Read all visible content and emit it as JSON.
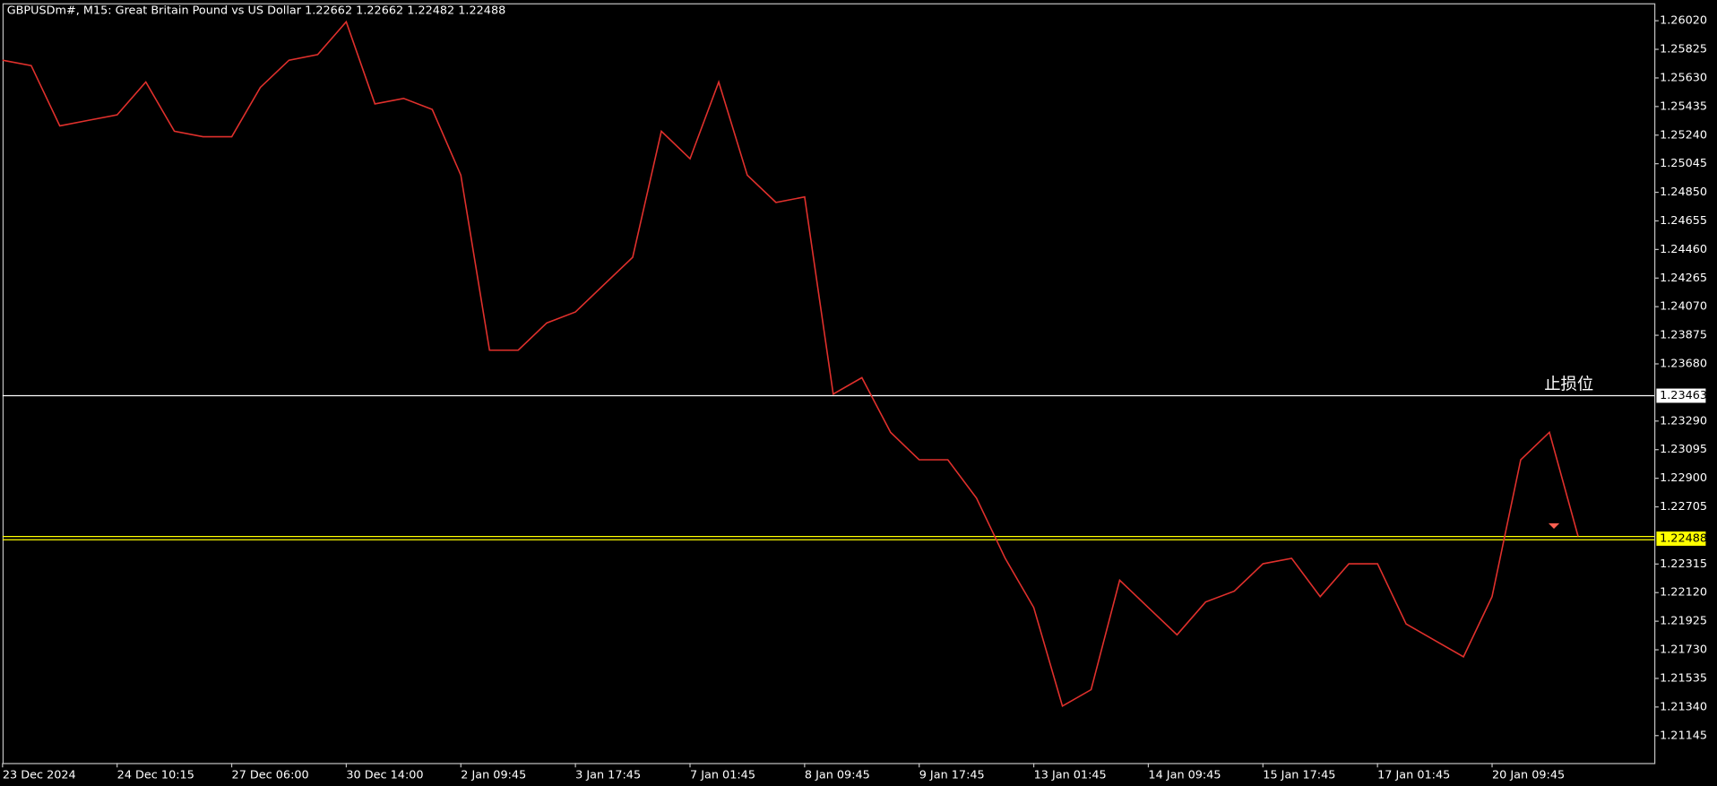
{
  "chart_data": {
    "type": "line",
    "title": "GBPUSDm#, M15:  Great Britain Pound vs US Dollar  1.22662 1.22662 1.22482 1.22488",
    "annotation": "止损位",
    "categories": [
      "23 Dec 2024",
      null,
      null,
      null,
      "24 Dec 10:15",
      null,
      null,
      null,
      "27 Dec 06:00",
      null,
      null,
      null,
      "30 Dec 14:00",
      null,
      null,
      null,
      "2 Jan 09:45",
      null,
      null,
      null,
      "3 Jan 17:45",
      null,
      null,
      null,
      "7 Jan 01:45",
      null,
      null,
      null,
      "8 Jan 09:45",
      null,
      null,
      null,
      "9 Jan 17:45",
      null,
      null,
      null,
      "13 Jan 01:45",
      null,
      null,
      null,
      "14 Jan 09:45",
      null,
      null,
      null,
      "15 Jan 17:45",
      null,
      null,
      null,
      "17 Jan 01:45",
      null,
      null,
      null,
      "20 Jan 09:45",
      null,
      null,
      null
    ],
    "series": [
      {
        "name": "GBPUSDm#",
        "color": "#e0302c",
        "values": [
          1.25751,
          1.25714,
          1.25303,
          1.25341,
          1.25378,
          1.25602,
          1.25266,
          1.25229,
          1.25229,
          1.25565,
          1.25751,
          1.25789,
          1.26013,
          1.25453,
          1.2549,
          1.25415,
          1.24967,
          1.23773,
          1.23773,
          1.23959,
          1.24034,
          1.24221,
          1.24407,
          1.25266,
          1.25079,
          1.25602,
          1.24967,
          1.24781,
          1.24818,
          1.23474,
          1.23586,
          1.23213,
          1.23026,
          1.23026,
          1.22765,
          1.22354,
          1.22018,
          1.21346,
          1.21458,
          1.22205,
          1.22018,
          1.21832,
          1.22056,
          1.2213,
          1.22317,
          1.22354,
          1.22093,
          1.22317,
          1.22317,
          1.21906,
          1.21794,
          1.21682,
          1.22093,
          1.23026,
          1.23213,
          1.22504
        ]
      }
    ],
    "hlines": [
      {
        "value": 1.23463,
        "color": "#ffffff"
      },
      {
        "value": 1.22488,
        "color": "#ffff00"
      }
    ],
    "ylim": [
      1.20958,
      1.26139
    ],
    "yticks": [
      {
        "value": 1.2602,
        "label": "1.26020"
      },
      {
        "value": 1.25825,
        "label": "1.25825"
      },
      {
        "value": 1.2563,
        "label": "1.25630"
      },
      {
        "value": 1.25435,
        "label": "1.25435"
      },
      {
        "value": 1.2524,
        "label": "1.25240"
      },
      {
        "value": 1.25045,
        "label": "1.25045"
      },
      {
        "value": 1.2485,
        "label": "1.24850"
      },
      {
        "value": 1.24655,
        "label": "1.24655"
      },
      {
        "value": 1.2446,
        "label": "1.24460"
      },
      {
        "value": 1.24265,
        "label": "1.24265"
      },
      {
        "value": 1.2407,
        "label": "1.24070"
      },
      {
        "value": 1.23875,
        "label": "1.23875"
      },
      {
        "value": 1.2368,
        "label": "1.23680"
      },
      {
        "value": 1.2329,
        "label": "1.23290"
      },
      {
        "value": 1.23095,
        "label": "1.23095"
      },
      {
        "value": 1.229,
        "label": "1.22900"
      },
      {
        "value": 1.22705,
        "label": "1.22705"
      },
      {
        "value": 1.22315,
        "label": "1.22315"
      },
      {
        "value": 1.2212,
        "label": "1.22120"
      },
      {
        "value": 1.21925,
        "label": "1.21925"
      },
      {
        "value": 1.2173,
        "label": "1.21730"
      },
      {
        "value": 1.21535,
        "label": "1.21535"
      },
      {
        "value": 1.2134,
        "label": "1.21340"
      },
      {
        "value": 1.21145,
        "label": "1.21145"
      }
    ],
    "grid": false
  }
}
